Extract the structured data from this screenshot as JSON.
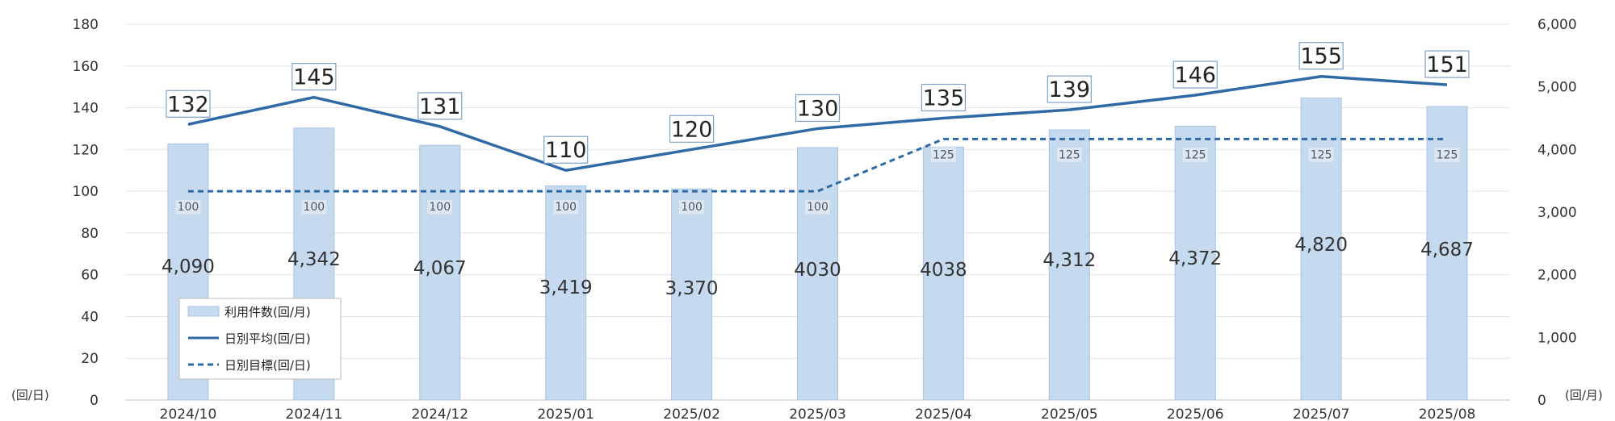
{
  "chart_data": {
    "type": "bar",
    "categories": [
      "2024/10",
      "2024/11",
      "2024/12",
      "2025/01",
      "2025/02",
      "2025/03",
      "2025/04",
      "2025/05",
      "2025/06",
      "2025/07",
      "2025/08"
    ],
    "series": [
      {
        "name": "利用件数(回/月)",
        "type": "bar",
        "axis": "right",
        "values": [
          4090,
          4342,
          4067,
          3419,
          3370,
          4030,
          4038,
          4312,
          4372,
          4820,
          4687
        ],
        "labels": [
          "4,090",
          "4,342",
          "4,067",
          "3,419",
          "3,370",
          "4030",
          "4038",
          "4,312",
          "4,372",
          "4,820",
          "4,687"
        ]
      },
      {
        "name": "日別平均(回/日)",
        "type": "line",
        "axis": "left",
        "values": [
          132,
          145,
          131,
          110,
          120,
          130,
          135,
          139,
          146,
          155,
          151
        ],
        "labels": [
          "132",
          "145",
          "131",
          "110",
          "120",
          "130",
          "135",
          "139",
          "146",
          "155",
          "151"
        ]
      },
      {
        "name": "日別目標(回/日)",
        "type": "line",
        "style": "dashed",
        "axis": "left",
        "values": [
          100,
          100,
          100,
          100,
          100,
          100,
          125,
          125,
          125,
          125,
          125
        ],
        "labels": [
          "100",
          "100",
          "100",
          "100",
          "100",
          "100",
          "125",
          "125",
          "125",
          "125",
          "125"
        ]
      }
    ],
    "left_axis": {
      "unit": "(回/日)",
      "ylim": [
        0,
        180
      ],
      "ticks": [
        "0",
        "20",
        "40",
        "60",
        "80",
        "100",
        "120",
        "140",
        "160",
        "180"
      ]
    },
    "right_axis": {
      "unit": "(回/月)",
      "ylim": [
        0,
        6000
      ],
      "ticks": [
        "0",
        "1,000",
        "2,000",
        "3,000",
        "4,000",
        "5,000",
        "6,000"
      ]
    },
    "grid": true,
    "legend_position": "lower-left",
    "colors": {
      "bar_fill": "#c5d9ef",
      "bar_stroke": "#a9c4e4",
      "line": "#2f6aa6",
      "grid": "#e4e4e4"
    }
  }
}
